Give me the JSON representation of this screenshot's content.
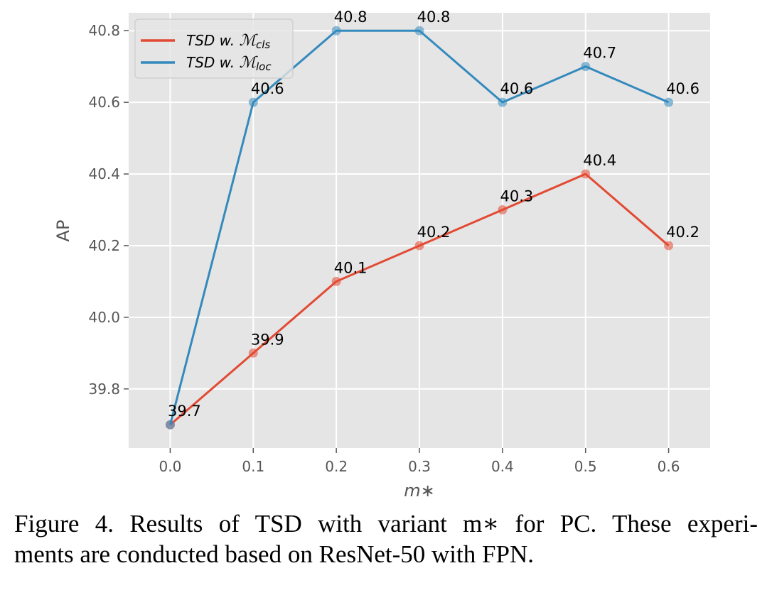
{
  "chart_data": {
    "type": "line",
    "xlabel": "m∗",
    "ylabel": "AP",
    "x": [
      0.0,
      0.1,
      0.2,
      0.3,
      0.4,
      0.5,
      0.6
    ],
    "x_tick_labels": [
      "0.0",
      "0.1",
      "0.2",
      "0.3",
      "0.4",
      "0.5",
      "0.6"
    ],
    "y_tick_values": [
      39.8,
      40.0,
      40.2,
      40.4,
      40.6,
      40.8
    ],
    "y_tick_labels": [
      "39.8",
      "40.0",
      "40.2",
      "40.4",
      "40.6",
      "40.8"
    ],
    "xlim": [
      -0.05,
      0.65
    ],
    "ylim": [
      39.635,
      40.85
    ],
    "grid": true,
    "legend_position": "top-left",
    "series": [
      {
        "name": "TSD w. ℳcls",
        "name_prefix": "TSD w. ",
        "name_script": "ℳ",
        "name_subscript": "cls",
        "color": "#E24A33",
        "values": [
          39.7,
          39.9,
          40.1,
          40.2,
          40.3,
          40.4,
          40.2
        ],
        "labels": [
          "39.7",
          "39.9",
          "40.1",
          "40.2",
          "40.3",
          "40.4",
          "40.2"
        ]
      },
      {
        "name": "TSD w. ℳloc",
        "name_prefix": "TSD w. ",
        "name_script": "ℳ",
        "name_subscript": "loc",
        "color": "#348ABD",
        "values": [
          39.7,
          40.6,
          40.8,
          40.8,
          40.6,
          40.7,
          40.6
        ],
        "labels": [
          "",
          "40.6",
          "40.8",
          "40.8",
          "40.6",
          "40.7",
          "40.6"
        ]
      }
    ]
  },
  "caption": {
    "line1": "Figure 4. Results of TSD with variant m∗ for PC. These experi-",
    "line2": "ments are conducted based on ResNet-50 with FPN."
  }
}
